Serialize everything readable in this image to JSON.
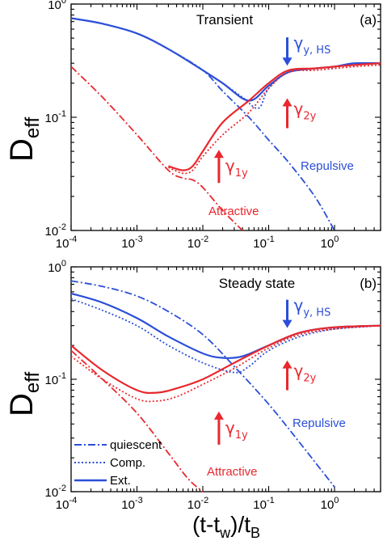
{
  "colors": {
    "blue": "#2b4fd8",
    "red": "#e8282e",
    "axis": "#000000"
  },
  "legend": {
    "quiescent": "quiescent",
    "comp": "Comp.",
    "ext": "Ext."
  },
  "chart_data": [
    {
      "type": "line",
      "title": "Transient",
      "panel_label": "(a)",
      "ylabel_main": "D",
      "ylabel_sub": "eff",
      "xscale": "log",
      "yscale": "log",
      "xlim": [
        0.0001,
        5
      ],
      "ylim": [
        0.01,
        1
      ],
      "x_ticks": [
        {
          "v": 0.0001,
          "base": "10",
          "exp": "-4"
        },
        {
          "v": 0.001,
          "base": "10",
          "exp": "-3"
        },
        {
          "v": 0.01,
          "base": "10",
          "exp": "-2"
        },
        {
          "v": 0.1,
          "base": "10",
          "exp": "-1"
        },
        {
          "v": 1,
          "base": "10",
          "exp": "0"
        }
      ],
      "y_ticks": [
        {
          "v": 0.01,
          "base": "10",
          "exp": "-2"
        },
        {
          "v": 0.1,
          "base": "10",
          "exp": "-1"
        },
        {
          "v": 1,
          "base": "10",
          "exp": "0"
        }
      ],
      "labels": {
        "repulsive": "Repulsive",
        "attractive": "Attractive"
      },
      "annotations": [
        {
          "id": "gy_hs",
          "sym": "γ",
          "sub": "y, HS",
          "color": "blue",
          "dir": "down",
          "x": 0.24,
          "y": 0.3
        },
        {
          "id": "g2y",
          "sym": "γ",
          "sub": "2y",
          "color": "red",
          "dir": "up",
          "x": 0.24,
          "y": 0.115
        },
        {
          "id": "g1y",
          "sym": "γ",
          "sub": "1y",
          "color": "red",
          "dir": "up",
          "x": 0.022,
          "y": 0.046
        }
      ],
      "series": [
        {
          "color": "blue",
          "style": "dashdot",
          "x": [
            0.0001,
            0.0003,
            0.001,
            0.003,
            0.01,
            0.02,
            0.05,
            0.1,
            0.2,
            0.5,
            1
          ],
          "y": [
            0.75,
            0.67,
            0.55,
            0.4,
            0.26,
            0.17,
            0.1,
            0.063,
            0.04,
            0.02,
            0.01
          ]
        },
        {
          "color": "blue",
          "style": "solid",
          "x": [
            0.0001,
            0.0003,
            0.001,
            0.003,
            0.01,
            0.02,
            0.05,
            0.1,
            0.2,
            0.5,
            1,
            2,
            5
          ],
          "y": [
            0.75,
            0.67,
            0.55,
            0.4,
            0.26,
            0.2,
            0.14,
            0.19,
            0.25,
            0.27,
            0.28,
            0.3,
            0.3
          ]
        },
        {
          "color": "blue",
          "style": "dotted",
          "x": [
            0.0001,
            0.0003,
            0.001,
            0.003,
            0.01,
            0.02,
            0.04,
            0.07,
            0.1,
            0.2,
            0.5,
            1,
            2,
            5
          ],
          "y": [
            0.75,
            0.67,
            0.55,
            0.4,
            0.26,
            0.2,
            0.15,
            0.12,
            0.18,
            0.25,
            0.27,
            0.28,
            0.29,
            0.3
          ]
        },
        {
          "color": "red",
          "style": "dashdot",
          "x": [
            0.0001,
            0.0003,
            0.001,
            0.003,
            0.005,
            0.007,
            0.01,
            0.02,
            0.04
          ],
          "y": [
            0.28,
            0.15,
            0.07,
            0.034,
            0.029,
            0.028,
            0.024,
            0.015,
            0.01
          ]
        },
        {
          "color": "red",
          "style": "solid",
          "x": [
            0.003,
            0.005,
            0.007,
            0.01,
            0.02,
            0.05,
            0.1,
            0.2,
            0.5,
            1,
            2,
            5
          ],
          "y": [
            0.037,
            0.034,
            0.037,
            0.05,
            0.09,
            0.14,
            0.2,
            0.26,
            0.27,
            0.28,
            0.29,
            0.3
          ]
        },
        {
          "color": "red",
          "style": "dotted",
          "x": [
            0.003,
            0.005,
            0.007,
            0.01,
            0.02,
            0.05,
            0.1,
            0.2,
            0.5,
            1,
            2,
            5
          ],
          "y": [
            0.036,
            0.032,
            0.034,
            0.045,
            0.07,
            0.11,
            0.18,
            0.25,
            0.26,
            0.27,
            0.28,
            0.29
          ]
        }
      ]
    },
    {
      "type": "line",
      "title": "Steady state",
      "panel_label": "(b)",
      "ylabel_main": "D",
      "ylabel_sub": "eff",
      "xlabel_main": "(t-t",
      "xlabel_sub1": "w",
      "xlabel_mid": ")/t",
      "xlabel_sub2": "B",
      "xscale": "log",
      "yscale": "log",
      "xlim": [
        0.0001,
        5
      ],
      "ylim": [
        0.01,
        1
      ],
      "x_ticks": [
        {
          "v": 0.0001,
          "base": "10",
          "exp": "-4"
        },
        {
          "v": 0.001,
          "base": "10",
          "exp": "-3"
        },
        {
          "v": 0.01,
          "base": "10",
          "exp": "-2"
        },
        {
          "v": 0.1,
          "base": "10",
          "exp": "-1"
        },
        {
          "v": 1,
          "base": "10",
          "exp": "0"
        }
      ],
      "y_ticks": [
        {
          "v": 0.01,
          "base": "10",
          "exp": "-2"
        },
        {
          "v": 0.1,
          "base": "10",
          "exp": "-1"
        },
        {
          "v": 1,
          "base": "10",
          "exp": "0"
        }
      ],
      "labels": {
        "repulsive": "Repulsive",
        "attractive": "Attractive"
      },
      "annotations": [
        {
          "id": "gy_hs",
          "sym": "γ",
          "sub": "y, HS",
          "color": "blue",
          "dir": "down",
          "x": 0.24,
          "y": 0.3
        },
        {
          "id": "g2y",
          "sym": "γ",
          "sub": "2y",
          "color": "red",
          "dir": "up",
          "x": 0.24,
          "y": 0.115
        },
        {
          "id": "g1y",
          "sym": "γ",
          "sub": "1y",
          "color": "red",
          "dir": "up",
          "x": 0.022,
          "y": 0.046
        }
      ],
      "series": [
        {
          "color": "blue",
          "style": "dashdot",
          "x": [
            0.0001,
            0.0003,
            0.001,
            0.003,
            0.01,
            0.03,
            0.1,
            0.3,
            1
          ],
          "y": [
            0.75,
            0.67,
            0.55,
            0.4,
            0.25,
            0.13,
            0.06,
            0.027,
            0.011
          ]
        },
        {
          "color": "blue",
          "style": "solid",
          "x": [
            0.0001,
            0.0003,
            0.001,
            0.003,
            0.01,
            0.02,
            0.04,
            0.1,
            0.3,
            1,
            5
          ],
          "y": [
            0.58,
            0.48,
            0.35,
            0.24,
            0.17,
            0.155,
            0.16,
            0.2,
            0.26,
            0.29,
            0.3
          ]
        },
        {
          "color": "blue",
          "style": "dotted",
          "x": [
            0.0001,
            0.0003,
            0.001,
            0.003,
            0.01,
            0.03,
            0.05,
            0.1,
            0.3,
            1,
            5
          ],
          "y": [
            0.52,
            0.41,
            0.3,
            0.2,
            0.14,
            0.115,
            0.13,
            0.18,
            0.24,
            0.28,
            0.3
          ]
        },
        {
          "color": "red",
          "style": "dashdot",
          "x": [
            0.0001,
            0.0003,
            0.001,
            0.003,
            0.006,
            0.01
          ],
          "y": [
            0.18,
            0.1,
            0.05,
            0.022,
            0.013,
            0.01
          ]
        },
        {
          "color": "red",
          "style": "solid",
          "x": [
            0.0001,
            0.0003,
            0.001,
            0.002,
            0.004,
            0.01,
            0.03,
            0.1,
            0.3,
            1,
            5
          ],
          "y": [
            0.2,
            0.12,
            0.08,
            0.076,
            0.083,
            0.1,
            0.14,
            0.2,
            0.26,
            0.29,
            0.3
          ]
        },
        {
          "color": "red",
          "style": "dotted",
          "x": [
            0.0001,
            0.0003,
            0.001,
            0.002,
            0.004,
            0.01,
            0.03,
            0.1,
            0.3,
            1,
            5
          ],
          "y": [
            0.16,
            0.1,
            0.067,
            0.064,
            0.07,
            0.09,
            0.125,
            0.19,
            0.25,
            0.28,
            0.3
          ]
        }
      ]
    }
  ]
}
